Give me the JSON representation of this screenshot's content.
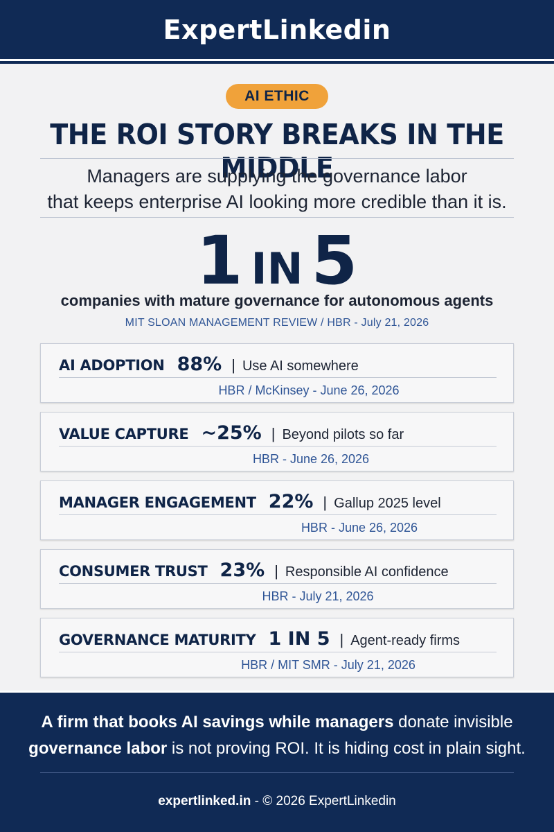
{
  "header": {
    "brand": "ExpertLinkedin"
  },
  "topic_badge": "AI ETHIC",
  "headline": "THE ROI STORY BREAKS IN THE MIDDLE",
  "subtitle": {
    "line1": "Managers are supplying the governance labor",
    "line2": "that keeps enterprise AI looking more credible than it is."
  },
  "hero_stat": {
    "left": "1",
    "middle": "IN",
    "right": "5",
    "caption": "companies with mature governance for autonomous agents",
    "source": "MIT SLOAN MANAGEMENT REVIEW / HBR - July 21, 2026"
  },
  "metrics": [
    {
      "label": "AI ADOPTION",
      "value": "88%",
      "separator": "|",
      "description": "Use AI somewhere",
      "source": "HBR / McKinsey - June 26, 2026"
    },
    {
      "label": "VALUE CAPTURE",
      "value": "~25%",
      "separator": "|",
      "description": "Beyond pilots so far",
      "source": "HBR - June 26, 2026"
    },
    {
      "label": "MANAGER ENGAGEMENT",
      "value": "22%",
      "separator": "|",
      "description": "Gallup 2025 level",
      "source": "HBR - June 26, 2026"
    },
    {
      "label": "CONSUMER TRUST",
      "value": "23%",
      "separator": "|",
      "description": "Responsible AI confidence",
      "source": "HBR - July 21, 2026"
    },
    {
      "label": "GOVERNANCE MATURITY",
      "value": "1 IN 5",
      "separator": "|",
      "description": "Agent-ready firms",
      "source": "HBR / MIT SMR - July 21, 2026"
    }
  ],
  "footer": {
    "statement_bold_1": "A firm that books AI savings while managers",
    "statement_plain_1": " donate invisible",
    "statement_bold_2": "governance labor",
    "statement_plain_2": " is not proving ROI. It is hiding cost in plain sight.",
    "site": "expertlinked.in",
    "copyright": " - © 2026 ExpertLinkedin"
  },
  "colors": {
    "navy": "#102a55",
    "accent_orange": "#f0a23a",
    "source_blue": "#2f5596",
    "background": "#f2f2f3"
  }
}
